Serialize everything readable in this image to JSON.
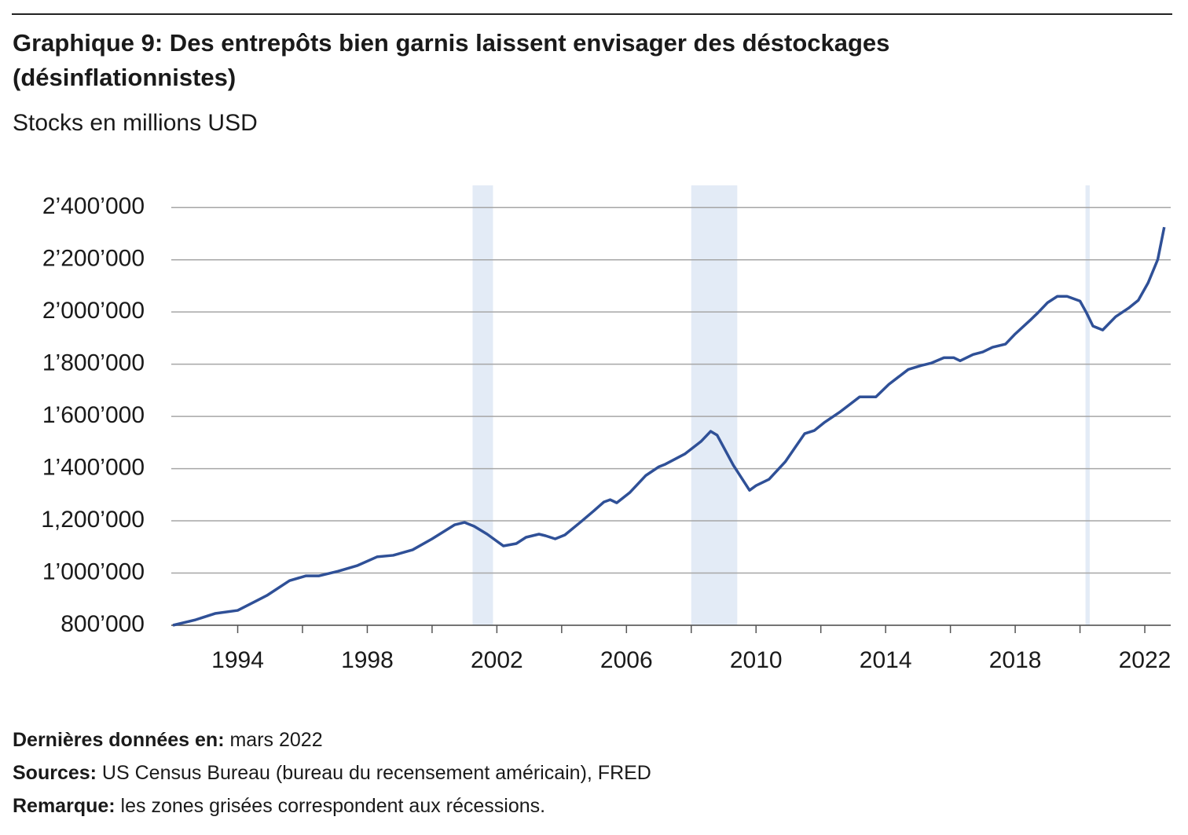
{
  "chart_data": {
    "type": "line",
    "title": "Graphique 9: Des entrepôts bien garnis laissent envisager des déstockages",
    "title_line2": "(désinflationnistes)",
    "subtitle": "Stocks en millions USD",
    "x": [
      1992.0,
      1992.7,
      1993.3,
      1994.0,
      1994.9,
      1995.6,
      1996.1,
      1996.5,
      1997.1,
      1997.7,
      1998.3,
      1998.8,
      1999.4,
      2000.0,
      2000.7,
      2001.0,
      2001.3,
      2001.7,
      2002.2,
      2002.6,
      2002.9,
      2003.3,
      2003.5,
      2003.8,
      2004.1,
      2004.6,
      2005.0,
      2005.3,
      2005.5,
      2005.7,
      2006.1,
      2006.6,
      2007.0,
      2007.2,
      2007.8,
      2008.3,
      2008.6,
      2008.8,
      2009.3,
      2009.8,
      2010.0,
      2010.4,
      2010.9,
      2011.5,
      2011.8,
      2012.1,
      2012.6,
      2013.2,
      2013.7,
      2014.1,
      2014.7,
      2015.1,
      2015.4,
      2015.8,
      2016.1,
      2016.3,
      2016.7,
      2017.0,
      2017.3,
      2017.7,
      2018.0,
      2018.5,
      2018.7,
      2019.0,
      2019.3,
      2019.6,
      2020.0,
      2020.2,
      2020.4,
      2020.7,
      2021.1,
      2021.5,
      2021.8,
      2022.1,
      2022.4,
      2022.6
    ],
    "series": [
      {
        "name": "Stocks",
        "color": "#2f5097",
        "values": [
          800000,
          821000,
          845000,
          857000,
          914000,
          971000,
          989000,
          989000,
          1007000,
          1029000,
          1062000,
          1068000,
          1089000,
          1131000,
          1185000,
          1194000,
          1179000,
          1149000,
          1104000,
          1113000,
          1137000,
          1149000,
          1143000,
          1131000,
          1146000,
          1197000,
          1239000,
          1272000,
          1281000,
          1269000,
          1308000,
          1374000,
          1407000,
          1417000,
          1456000,
          1504000,
          1543000,
          1528000,
          1413000,
          1317000,
          1335000,
          1359000,
          1426000,
          1534000,
          1546000,
          1576000,
          1618000,
          1675000,
          1675000,
          1723000,
          1780000,
          1795000,
          1804000,
          1825000,
          1825000,
          1813000,
          1837000,
          1847000,
          1865000,
          1877000,
          1916000,
          1973000,
          1997000,
          2036000,
          2060000,
          2060000,
          2042000,
          1997000,
          1946000,
          1931000,
          1982000,
          2015000,
          2045000,
          2111000,
          2201000,
          2325000
        ]
      }
    ],
    "recessions": [
      [
        2001.25,
        2001.88
      ],
      [
        2008.0,
        2009.42
      ],
      [
        2020.17,
        2020.3
      ]
    ],
    "recession_color": "#e3ebf6",
    "xlim": [
      1991.95,
      2022.8
    ],
    "xticks": [
      1994,
      1998,
      2002,
      2006,
      2010,
      2014,
      2018,
      2022
    ],
    "xminor_ticks": [
      1996,
      2000,
      2004,
      2008,
      2012,
      2016,
      2020
    ],
    "ylim": [
      800000,
      2485000
    ],
    "yticks": [
      {
        "value": 800000,
        "label": "800’000"
      },
      {
        "value": 1000000,
        "label": "1’000’000"
      },
      {
        "value": 1200000,
        "label": "1,200’000"
      },
      {
        "value": 1400000,
        "label": "1’400’000"
      },
      {
        "value": 1600000,
        "label": "1’600’000"
      },
      {
        "value": 1800000,
        "label": "1’800’000"
      },
      {
        "value": 2000000,
        "label": "2’000’000"
      },
      {
        "value": 2200000,
        "label": "2’200’000"
      },
      {
        "value": 2400000,
        "label": "2’400’000"
      }
    ],
    "grid": true,
    "notes": [
      {
        "label": "Dernières données en:",
        "text": " mars 2022"
      },
      {
        "label": "Sources:",
        "text": " US Census Bureau (bureau du recensement américain), FRED"
      },
      {
        "label": "Remarque:",
        "text": " les zones grisées correspondent aux récessions."
      }
    ]
  }
}
